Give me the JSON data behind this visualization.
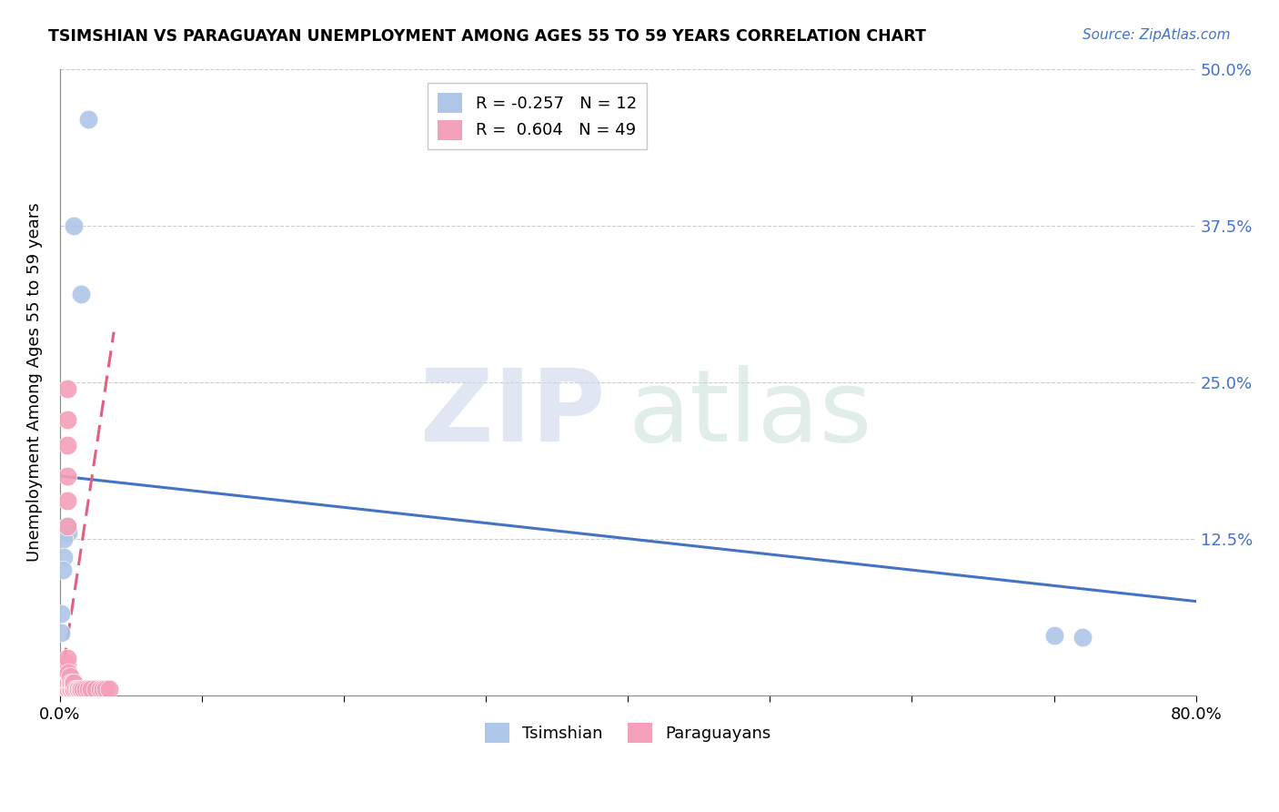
{
  "title": "TSIMSHIAN VS PARAGUAYAN UNEMPLOYMENT AMONG AGES 55 TO 59 YEARS CORRELATION CHART",
  "source": "Source: ZipAtlas.com",
  "ylabel": "Unemployment Among Ages 55 to 59 years",
  "tsimshian_R": -0.257,
  "tsimshian_N": 12,
  "paraguayan_R": 0.604,
  "paraguayan_N": 49,
  "xlim": [
    0.0,
    0.8
  ],
  "ylim": [
    0.0,
    0.5
  ],
  "yticks": [
    0.0,
    0.125,
    0.25,
    0.375,
    0.5
  ],
  "ytick_labels_right": [
    "",
    "12.5%",
    "25.0%",
    "37.5%",
    "50.0%"
  ],
  "xticks": [
    0.0,
    0.1,
    0.2,
    0.3,
    0.4,
    0.5,
    0.6,
    0.7,
    0.8
  ],
  "xtick_labels": [
    "0.0%",
    "",
    "",
    "",
    "",
    "",
    "",
    "",
    "80.0%"
  ],
  "tsimshian_color": "#aec6e8",
  "paraguayan_color": "#f4a0b8",
  "tsimshian_line_color": "#4472c4",
  "paraguayan_line_color": "#e06080",
  "right_label_color": "#4472c4",
  "tsimshian_points_x": [
    0.02,
    0.01,
    0.015,
    0.005,
    0.006,
    0.003,
    0.003,
    0.002,
    0.001,
    0.001,
    0.7,
    0.72
  ],
  "tsimshian_points_y": [
    0.46,
    0.375,
    0.32,
    0.135,
    0.13,
    0.125,
    0.11,
    0.1,
    0.065,
    0.05,
    0.048,
    0.046
  ],
  "paraguayan_points_x": [
    0.002,
    0.002,
    0.003,
    0.003,
    0.003,
    0.004,
    0.004,
    0.004,
    0.004,
    0.005,
    0.005,
    0.005,
    0.005,
    0.005,
    0.005,
    0.005,
    0.005,
    0.006,
    0.006,
    0.006,
    0.007,
    0.007,
    0.007,
    0.008,
    0.008,
    0.009,
    0.009,
    0.01,
    0.01,
    0.011,
    0.012,
    0.013,
    0.014,
    0.015,
    0.016,
    0.018,
    0.02,
    0.022,
    0.025,
    0.028,
    0.03,
    0.032,
    0.035,
    0.005,
    0.005,
    0.005,
    0.005,
    0.005,
    0.005
  ],
  "paraguayan_points_y": [
    0.005,
    0.01,
    0.005,
    0.01,
    0.015,
    0.005,
    0.01,
    0.015,
    0.02,
    0.005,
    0.008,
    0.012,
    0.015,
    0.018,
    0.022,
    0.025,
    0.03,
    0.005,
    0.01,
    0.018,
    0.005,
    0.01,
    0.015,
    0.005,
    0.01,
    0.005,
    0.01,
    0.005,
    0.01,
    0.005,
    0.005,
    0.005,
    0.005,
    0.005,
    0.005,
    0.005,
    0.005,
    0.005,
    0.005,
    0.005,
    0.005,
    0.005,
    0.005,
    0.135,
    0.155,
    0.175,
    0.2,
    0.22,
    0.245
  ],
  "ts_line_x": [
    0.0,
    0.8
  ],
  "ts_line_y": [
    0.175,
    0.075
  ],
  "pa_line_x": [
    0.0,
    0.038
  ],
  "pa_line_y": [
    0.005,
    0.29
  ],
  "background_color": "#ffffff",
  "grid_color": "#cccccc"
}
